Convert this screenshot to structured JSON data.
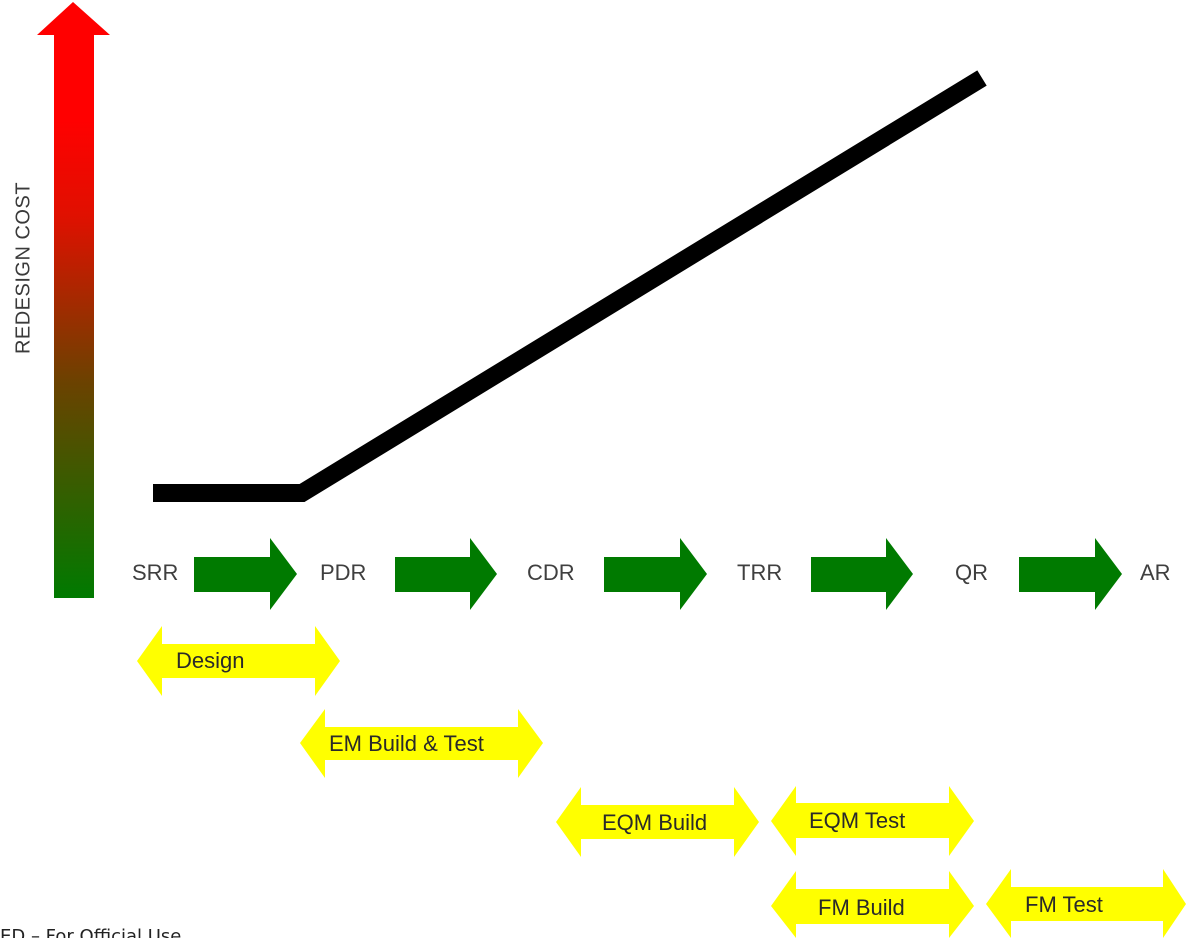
{
  "y_axis": {
    "label": "REDESIGN COST"
  },
  "milestones": [
    {
      "label": "SRR"
    },
    {
      "label": "PDR"
    },
    {
      "label": "CDR"
    },
    {
      "label": "TRR"
    },
    {
      "label": "QR"
    },
    {
      "label": "AR"
    }
  ],
  "phases": [
    {
      "label": "Design"
    },
    {
      "label": "EM Build & Test"
    },
    {
      "label": "EQM Build"
    },
    {
      "label": "EQM Test"
    },
    {
      "label": "FM Build"
    },
    {
      "label": "FM Test"
    }
  ],
  "footer": {
    "text": "ED – For Official Use"
  },
  "colors": {
    "arrow_top": "#ff0000",
    "arrow_bottom": "#007a00",
    "milestone_arrow": "#007a00",
    "phase_arrow": "#ffff00",
    "cost_line": "#000000"
  }
}
